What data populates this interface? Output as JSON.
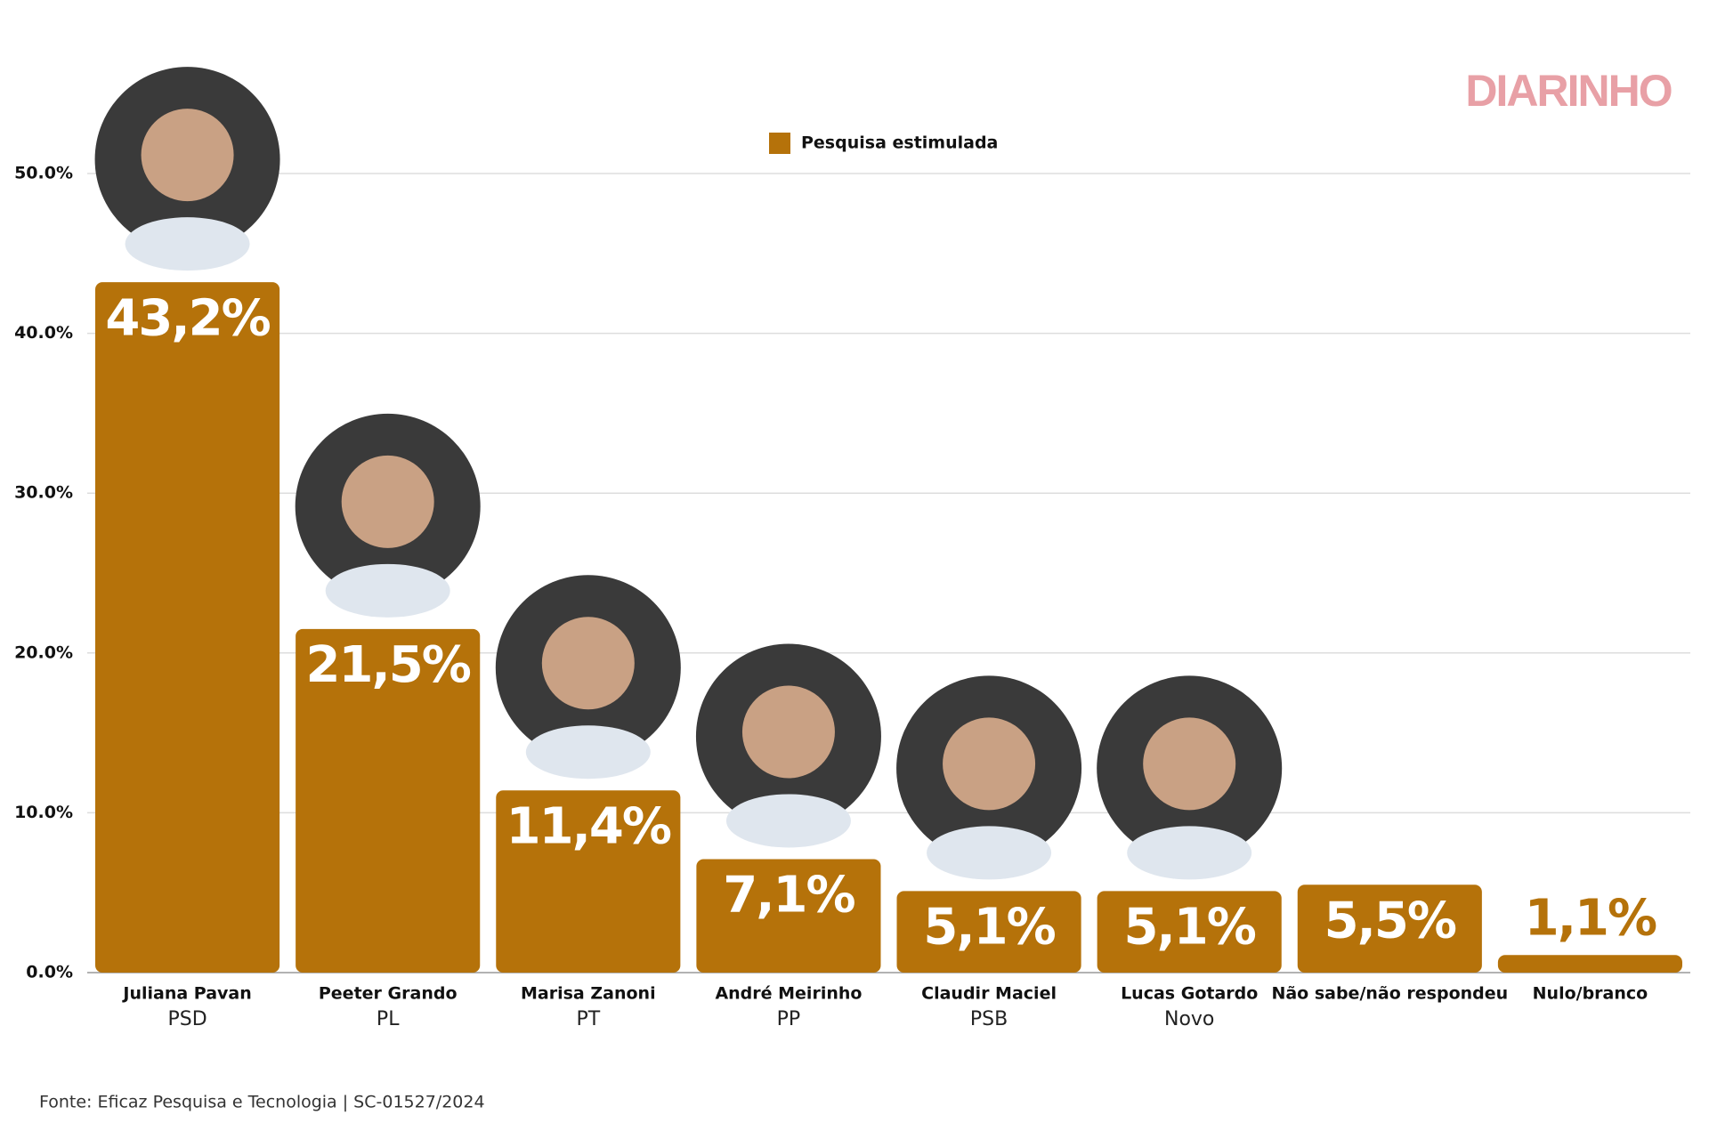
{
  "chart_data": {
    "type": "bar",
    "brand": "DIARINHO",
    "legend": "Pesquisa estimulada",
    "source": "Fonte: Eficaz Pesquisa e Tecnologia | SC-01527/2024",
    "categories": [
      "Juliana Pavan",
      "Peeter Grando",
      "Marisa Zanoni",
      "André Meirinho",
      "Claudir Maciel",
      "Lucas Gotardo",
      "Não sabe/não respondeu",
      "Nulo/branco"
    ],
    "parties": [
      "PSD",
      "PL",
      "PT",
      "PP",
      "PSB",
      "Novo",
      null,
      null
    ],
    "values": [
      43.2,
      21.5,
      11.4,
      7.1,
      5.1,
      5.1,
      5.5,
      1.1
    ],
    "value_labels": [
      "43,2%",
      "21,5%",
      "11,4%",
      "7,1%",
      "5,1%",
      "5,1%",
      "5,5%",
      "1,1%"
    ],
    "color": "#b5720a",
    "ylim": [
      0,
      50
    ],
    "yticks": [
      {
        "value": 0,
        "label": "0.0%"
      },
      {
        "value": 10,
        "label": "10.0%"
      },
      {
        "value": 20,
        "label": "20.0%"
      },
      {
        "value": 30,
        "label": "30.0%"
      },
      {
        "value": 40,
        "label": "40.0%"
      },
      {
        "value": 50,
        "label": "50.0%"
      }
    ],
    "grid": true
  }
}
